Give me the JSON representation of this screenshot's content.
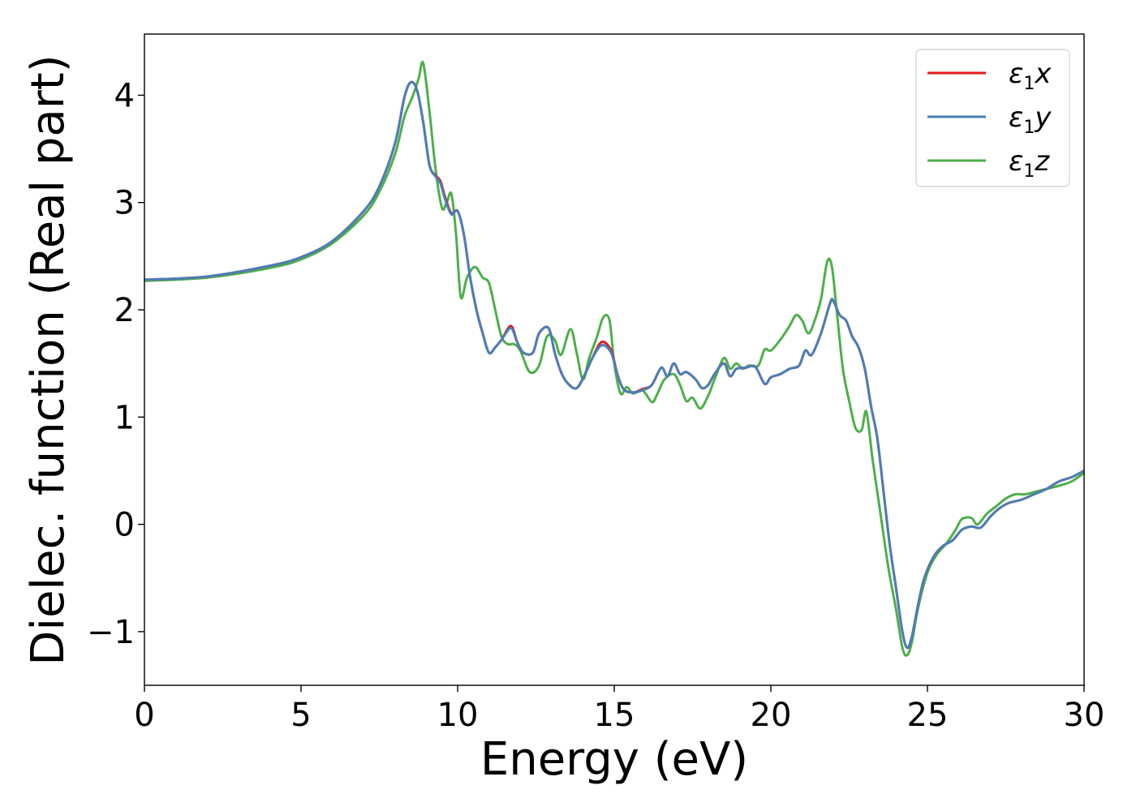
{
  "chart_data": {
    "type": "line",
    "xlabel": "Energy (eV)",
    "ylabel": "Dielec. function (Real part)",
    "xlim": [
      0,
      30
    ],
    "ylim": [
      -1.5,
      4.57
    ],
    "xticks": [
      0,
      5,
      10,
      15,
      20,
      25,
      30
    ],
    "xtick_labels": [
      "0",
      "5",
      "10",
      "15",
      "20",
      "25",
      "30"
    ],
    "yticks": [
      -1,
      0,
      1,
      2,
      3,
      4
    ],
    "ytick_labels": [
      "−1",
      "0",
      "1",
      "2",
      "3",
      "4"
    ],
    "grid": false,
    "legend_position": "top-right",
    "series": [
      {
        "name": "ε₁x",
        "name_main": "ε",
        "name_sub": "1",
        "name_tail": "x",
        "color": "#e41a1c",
        "x": [
          0,
          2,
          4,
          5,
          6,
          7,
          7.5,
          8,
          8.3,
          8.5,
          8.7,
          8.9,
          9.1,
          9.3,
          9.45,
          9.6,
          9.8,
          10.0,
          10.2,
          10.4,
          10.6,
          10.8,
          11.0,
          11.2,
          11.4,
          11.7,
          11.9,
          12.1,
          12.4,
          12.6,
          12.9,
          13.1,
          13.3,
          13.5,
          13.8,
          14.1,
          14.3,
          14.6,
          14.9,
          15.1,
          15.3,
          15.6,
          15.9,
          16.2,
          16.5,
          16.7,
          16.9,
          17.1,
          17.3,
          17.6,
          17.8,
          18.0,
          18.2,
          18.5,
          18.7,
          18.9,
          19.2,
          19.5,
          19.8,
          20.0,
          20.3,
          20.6,
          20.9,
          21.1,
          21.3,
          21.6,
          21.9,
          22.0,
          22.2,
          22.4,
          22.6,
          22.8,
          23.0,
          23.2,
          23.4,
          23.6,
          23.8,
          24.0,
          24.2,
          24.35,
          24.5,
          24.7,
          24.9,
          25.2,
          25.5,
          25.8,
          26.1,
          26.4,
          26.7,
          27.0,
          27.3,
          27.6,
          28.0,
          28.4,
          28.8,
          29.2,
          29.6,
          30.0
        ],
        "y": [
          2.28,
          2.31,
          2.41,
          2.49,
          2.64,
          2.92,
          3.15,
          3.55,
          3.98,
          4.12,
          4.05,
          3.75,
          3.35,
          3.25,
          3.2,
          3.05,
          2.9,
          2.92,
          2.7,
          2.3,
          2.0,
          1.78,
          1.6,
          1.65,
          1.72,
          1.85,
          1.7,
          1.6,
          1.6,
          1.78,
          1.83,
          1.6,
          1.42,
          1.32,
          1.27,
          1.42,
          1.55,
          1.7,
          1.62,
          1.4,
          1.26,
          1.23,
          1.26,
          1.3,
          1.46,
          1.38,
          1.5,
          1.4,
          1.42,
          1.35,
          1.27,
          1.3,
          1.4,
          1.5,
          1.38,
          1.45,
          1.46,
          1.47,
          1.31,
          1.37,
          1.4,
          1.45,
          1.48,
          1.62,
          1.58,
          1.78,
          2.07,
          2.08,
          1.95,
          1.9,
          1.75,
          1.65,
          1.45,
          1.1,
          0.8,
          0.3,
          -0.2,
          -0.6,
          -1.0,
          -1.15,
          -1.05,
          -0.75,
          -0.5,
          -0.3,
          -0.2,
          -0.15,
          -0.05,
          -0.02,
          -0.03,
          0.07,
          0.15,
          0.2,
          0.23,
          0.28,
          0.33,
          0.4,
          0.44,
          0.5
        ]
      },
      {
        "name": "ε₁y",
        "name_main": "ε",
        "name_sub": "1",
        "name_tail": "y",
        "color": "#4a7fb8",
        "x": [
          0,
          2,
          4,
          5,
          6,
          7,
          7.5,
          8,
          8.3,
          8.5,
          8.7,
          8.9,
          9.1,
          9.3,
          9.45,
          9.6,
          9.8,
          10.0,
          10.2,
          10.4,
          10.6,
          10.8,
          11.0,
          11.2,
          11.4,
          11.7,
          11.9,
          12.1,
          12.4,
          12.6,
          12.9,
          13.1,
          13.3,
          13.5,
          13.8,
          14.1,
          14.3,
          14.6,
          14.9,
          15.1,
          15.3,
          15.6,
          15.9,
          16.2,
          16.5,
          16.7,
          16.9,
          17.1,
          17.3,
          17.6,
          17.8,
          18.0,
          18.2,
          18.5,
          18.7,
          18.9,
          19.2,
          19.5,
          19.8,
          20.0,
          20.3,
          20.6,
          20.9,
          21.1,
          21.3,
          21.6,
          21.9,
          22.0,
          22.2,
          22.4,
          22.6,
          22.8,
          23.0,
          23.2,
          23.4,
          23.6,
          23.8,
          24.0,
          24.2,
          24.35,
          24.5,
          24.7,
          24.9,
          25.2,
          25.5,
          25.8,
          26.1,
          26.4,
          26.7,
          27.0,
          27.3,
          27.6,
          28.0,
          28.4,
          28.8,
          29.2,
          29.6,
          30.0
        ],
        "y": [
          2.28,
          2.31,
          2.41,
          2.49,
          2.64,
          2.92,
          3.15,
          3.55,
          3.98,
          4.12,
          4.05,
          3.75,
          3.35,
          3.24,
          3.18,
          3.03,
          2.89,
          2.92,
          2.7,
          2.3,
          2.0,
          1.78,
          1.6,
          1.65,
          1.72,
          1.83,
          1.7,
          1.6,
          1.6,
          1.78,
          1.83,
          1.6,
          1.42,
          1.32,
          1.27,
          1.42,
          1.55,
          1.67,
          1.6,
          1.4,
          1.26,
          1.23,
          1.25,
          1.3,
          1.46,
          1.38,
          1.5,
          1.4,
          1.42,
          1.35,
          1.27,
          1.3,
          1.4,
          1.5,
          1.38,
          1.45,
          1.46,
          1.47,
          1.31,
          1.37,
          1.4,
          1.45,
          1.48,
          1.62,
          1.58,
          1.78,
          2.07,
          2.08,
          1.95,
          1.9,
          1.75,
          1.65,
          1.45,
          1.1,
          0.8,
          0.3,
          -0.2,
          -0.6,
          -1.0,
          -1.15,
          -1.05,
          -0.75,
          -0.5,
          -0.3,
          -0.2,
          -0.15,
          -0.05,
          -0.02,
          -0.03,
          0.07,
          0.15,
          0.2,
          0.23,
          0.28,
          0.33,
          0.4,
          0.44,
          0.5
        ]
      },
      {
        "name": "ε₁z",
        "name_main": "ε",
        "name_sub": "1",
        "name_tail": "z",
        "color": "#4daf4a",
        "x": [
          0,
          2,
          4,
          5,
          6,
          7,
          7.5,
          8,
          8.3,
          8.55,
          8.75,
          8.9,
          9.1,
          9.3,
          9.5,
          9.65,
          9.8,
          9.95,
          10.1,
          10.3,
          10.55,
          10.8,
          11.0,
          11.2,
          11.4,
          11.6,
          11.8,
          12.0,
          12.3,
          12.6,
          12.85,
          13.1,
          13.3,
          13.6,
          13.8,
          14.0,
          14.2,
          14.45,
          14.65,
          14.85,
          15.0,
          15.2,
          15.4,
          15.6,
          15.9,
          16.2,
          16.35,
          16.6,
          16.9,
          17.1,
          17.3,
          17.5,
          17.75,
          18.0,
          18.2,
          18.5,
          18.7,
          18.9,
          19.1,
          19.3,
          19.6,
          19.8,
          20.0,
          20.3,
          20.6,
          20.8,
          21.0,
          21.2,
          21.4,
          21.6,
          21.8,
          21.95,
          22.1,
          22.3,
          22.5,
          22.7,
          22.9,
          23.05,
          23.25,
          23.5,
          23.75,
          24.0,
          24.2,
          24.35,
          24.5,
          24.7,
          25.0,
          25.3,
          25.6,
          25.9,
          26.1,
          26.4,
          26.6,
          26.9,
          27.2,
          27.5,
          27.8,
          28.1,
          28.4,
          28.8,
          29.2,
          29.6,
          30.0
        ],
        "y": [
          2.27,
          2.3,
          2.39,
          2.47,
          2.62,
          2.88,
          3.1,
          3.45,
          3.8,
          3.98,
          4.15,
          4.3,
          3.85,
          3.3,
          2.95,
          3.0,
          3.08,
          2.7,
          2.12,
          2.3,
          2.4,
          2.3,
          2.25,
          2.0,
          1.75,
          1.68,
          1.68,
          1.62,
          1.42,
          1.48,
          1.75,
          1.72,
          1.58,
          1.82,
          1.6,
          1.35,
          1.55,
          1.75,
          1.93,
          1.9,
          1.5,
          1.22,
          1.28,
          1.22,
          1.25,
          1.14,
          1.2,
          1.35,
          1.4,
          1.3,
          1.15,
          1.18,
          1.08,
          1.2,
          1.35,
          1.55,
          1.45,
          1.5,
          1.45,
          1.48,
          1.48,
          1.63,
          1.62,
          1.72,
          1.85,
          1.95,
          1.9,
          1.78,
          1.9,
          2.1,
          2.45,
          2.4,
          2.0,
          1.45,
          1.15,
          0.9,
          0.88,
          1.05,
          0.6,
          0.1,
          -0.4,
          -0.8,
          -1.15,
          -1.22,
          -1.1,
          -0.78,
          -0.45,
          -0.28,
          -0.18,
          -0.05,
          0.05,
          0.06,
          0.0,
          0.1,
          0.17,
          0.24,
          0.28,
          0.28,
          0.3,
          0.33,
          0.36,
          0.4,
          0.48
        ]
      }
    ]
  }
}
